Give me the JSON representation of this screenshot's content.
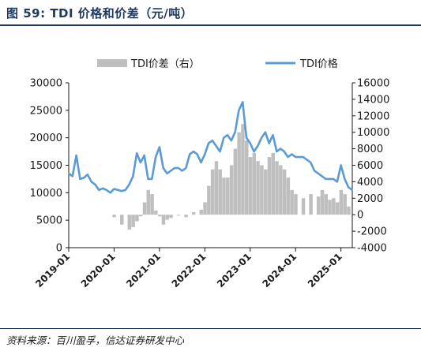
{
  "header": {
    "figure_title": "图 59:  TDI 价格和价差（元/吨）"
  },
  "footer": {
    "source": "资料来源：百川盈孚，信达证券研发中心"
  },
  "colors": {
    "title": "#1f3864",
    "price_line": "#5b9bd5",
    "spread_bar": "#bfbfbf",
    "axis": "#1a1a1a"
  },
  "chart_data": {
    "type": "line",
    "title": "",
    "legend_position": "top",
    "grid": false,
    "xlabel": "",
    "ylabel": "",
    "x_tick_labels": [
      "2019-01",
      "2020-01",
      "2021-01",
      "2022-01",
      "2023-01",
      "2024-01",
      "2025-01"
    ],
    "x_range": [
      "2019-01",
      "2025-04"
    ],
    "y_left": {
      "range": [
        0,
        30000
      ],
      "tick_labels": [
        "0",
        "5000",
        "10000",
        "15000",
        "20000",
        "25000",
        "30000"
      ]
    },
    "y_right": {
      "range": [
        -4000,
        16000
      ],
      "tick_labels": [
        "-4000",
        "-2000",
        "0",
        "2000",
        "4000",
        "6000",
        "8000",
        "10000",
        "12000",
        "14000",
        "16000"
      ]
    },
    "series": [
      {
        "name": "TDI价差（右）",
        "type": "bar",
        "axis": "right",
        "x": [
          "2019-01",
          "2019-03",
          "2019-05",
          "2019-07",
          "2019-09",
          "2019-11",
          "2020-01",
          "2020-03",
          "2020-05",
          "2020-06",
          "2020-07",
          "2020-08",
          "2020-09",
          "2020-10",
          "2020-11",
          "2020-12",
          "2021-01",
          "2021-02",
          "2021-03",
          "2021-04",
          "2021-06",
          "2021-08",
          "2021-10",
          "2021-12",
          "2022-01",
          "2022-02",
          "2022-03",
          "2022-04",
          "2022-05",
          "2022-06",
          "2022-07",
          "2022-08",
          "2022-09",
          "2022-10",
          "2022-11",
          "2022-12",
          "2023-01",
          "2023-02",
          "2023-03",
          "2023-04",
          "2023-05",
          "2023-06",
          "2023-07",
          "2023-08",
          "2023-09",
          "2023-10",
          "2023-11",
          "2023-12",
          "2024-01",
          "2024-03",
          "2024-05",
          "2024-07",
          "2024-08",
          "2024-09",
          "2024-10",
          "2024-11",
          "2024-12",
          "2025-01",
          "2025-02",
          "2025-03",
          "2025-04"
        ],
        "values": [
          0,
          0,
          0,
          0,
          0,
          0,
          -300,
          -1200,
          -1800,
          -1500,
          -800,
          -200,
          1500,
          3000,
          2500,
          500,
          -200,
          -1200,
          -600,
          -400,
          -100,
          -300,
          300,
          600,
          1500,
          3500,
          5500,
          6500,
          5500,
          4500,
          4500,
          6000,
          8000,
          10000,
          11000,
          9000,
          7000,
          7500,
          6500,
          6000,
          5500,
          7000,
          7500,
          6500,
          6000,
          5500,
          4500,
          3000,
          2500,
          2000,
          2500,
          2200,
          3000,
          2500,
          1800,
          2000,
          1500,
          3000,
          2500,
          1000,
          0
        ]
      },
      {
        "name": "TDI价格",
        "type": "line",
        "axis": "left",
        "x": [
          "2019-01",
          "2019-02",
          "2019-03",
          "2019-04",
          "2019-05",
          "2019-06",
          "2019-07",
          "2019-08",
          "2019-09",
          "2019-10",
          "2019-11",
          "2019-12",
          "2020-01",
          "2020-02",
          "2020-03",
          "2020-04",
          "2020-05",
          "2020-06",
          "2020-07",
          "2020-08",
          "2020-09",
          "2020-10",
          "2020-11",
          "2020-12",
          "2021-01",
          "2021-02",
          "2021-03",
          "2021-04",
          "2021-05",
          "2021-06",
          "2021-07",
          "2021-08",
          "2021-09",
          "2021-10",
          "2021-11",
          "2021-12",
          "2022-01",
          "2022-02",
          "2022-03",
          "2022-04",
          "2022-05",
          "2022-06",
          "2022-07",
          "2022-08",
          "2022-09",
          "2022-10",
          "2022-11",
          "2022-12",
          "2023-01",
          "2023-02",
          "2023-03",
          "2023-04",
          "2023-05",
          "2023-06",
          "2023-07",
          "2023-08",
          "2023-09",
          "2023-10",
          "2023-11",
          "2023-12",
          "2024-01",
          "2024-02",
          "2024-03",
          "2024-04",
          "2024-05",
          "2024-06",
          "2024-07",
          "2024-08",
          "2024-09",
          "2024-10",
          "2024-11",
          "2024-12",
          "2025-01",
          "2025-02",
          "2025-03",
          "2025-04"
        ],
        "values": [
          13500,
          13000,
          16800,
          12500,
          12700,
          13300,
          12000,
          11500,
          10500,
          10800,
          10500,
          10000,
          10700,
          10500,
          10300,
          10500,
          11500,
          13000,
          17200,
          15500,
          16800,
          12500,
          12500,
          16500,
          18300,
          14500,
          13500,
          14000,
          14500,
          14500,
          14000,
          14500,
          17000,
          17500,
          17000,
          15500,
          17000,
          19000,
          19500,
          18500,
          17500,
          20000,
          20500,
          19500,
          21000,
          25000,
          26500,
          20000,
          19000,
          17500,
          18500,
          20000,
          21000,
          19000,
          20500,
          17500,
          18000,
          17500,
          16500,
          17000,
          16500,
          16500,
          16500,
          16000,
          15500,
          14000,
          13500,
          13000,
          12500,
          12500,
          12500,
          12000,
          15000,
          12500,
          11000,
          10500
        ]
      }
    ]
  }
}
